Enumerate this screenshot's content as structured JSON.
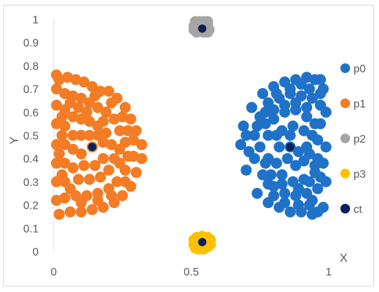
{
  "chart_data": {
    "type": "scatter",
    "title": "",
    "xlabel": "X",
    "ylabel": "Y",
    "xlim": [
      0,
      1
    ],
    "ylim": [
      0,
      1
    ],
    "x_ticks": [
      "0",
      "0.5",
      "1"
    ],
    "y_ticks": [
      "0",
      "0.1",
      "0.2",
      "0.3",
      "0.4",
      "0.5",
      "0.6",
      "0.7",
      "0.8",
      "0.9",
      "1"
    ],
    "grid": false,
    "legend_position": "right",
    "series": [
      {
        "name": "p0",
        "color": "#1f72c8",
        "points": [
          [
            0.86,
            0.45
          ],
          [
            0.9,
            0.72
          ],
          [
            0.95,
            0.74
          ],
          [
            0.93,
            0.2
          ],
          [
            0.96,
            0.17
          ],
          [
            0.78,
            0.29
          ],
          [
            0.7,
            0.35
          ],
          [
            0.68,
            0.46
          ],
          [
            0.69,
            0.54
          ],
          [
            0.72,
            0.62
          ],
          [
            0.76,
            0.68
          ],
          [
            0.8,
            0.71
          ],
          [
            0.84,
            0.73
          ],
          [
            0.88,
            0.74
          ],
          [
            0.92,
            0.75
          ],
          [
            0.97,
            0.74
          ],
          [
            0.74,
            0.25
          ],
          [
            0.78,
            0.21
          ],
          [
            0.82,
            0.19
          ],
          [
            0.86,
            0.17
          ],
          [
            0.9,
            0.17
          ],
          [
            0.94,
            0.16
          ],
          [
            0.98,
            0.19
          ],
          [
            0.99,
            0.3
          ],
          [
            0.99,
            0.45
          ],
          [
            0.99,
            0.6
          ],
          [
            0.98,
            0.7
          ],
          [
            0.73,
            0.4
          ],
          [
            0.73,
            0.5
          ],
          [
            0.75,
            0.58
          ],
          [
            0.78,
            0.64
          ],
          [
            0.82,
            0.66
          ],
          [
            0.86,
            0.68
          ],
          [
            0.9,
            0.67
          ],
          [
            0.94,
            0.66
          ],
          [
            0.97,
            0.63
          ],
          [
            0.76,
            0.33
          ],
          [
            0.8,
            0.28
          ],
          [
            0.84,
            0.25
          ],
          [
            0.88,
            0.24
          ],
          [
            0.92,
            0.25
          ],
          [
            0.96,
            0.27
          ],
          [
            0.78,
            0.4
          ],
          [
            0.78,
            0.5
          ],
          [
            0.8,
            0.57
          ],
          [
            0.84,
            0.6
          ],
          [
            0.88,
            0.61
          ],
          [
            0.92,
            0.58
          ],
          [
            0.95,
            0.55
          ],
          [
            0.96,
            0.48
          ],
          [
            0.96,
            0.4
          ],
          [
            0.95,
            0.34
          ],
          [
            0.91,
            0.31
          ],
          [
            0.87,
            0.3
          ],
          [
            0.83,
            0.33
          ],
          [
            0.81,
            0.38
          ],
          [
            0.82,
            0.45
          ],
          [
            0.83,
            0.52
          ],
          [
            0.87,
            0.54
          ],
          [
            0.91,
            0.52
          ],
          [
            0.92,
            0.45
          ],
          [
            0.91,
            0.39
          ],
          [
            0.88,
            0.37
          ],
          [
            0.85,
            0.4
          ],
          [
            0.71,
            0.43
          ],
          [
            0.7,
            0.5
          ],
          [
            0.75,
            0.45
          ],
          [
            0.77,
            0.55
          ],
          [
            0.81,
            0.5
          ],
          [
            0.86,
            0.5
          ],
          [
            0.89,
            0.43
          ],
          [
            0.93,
            0.42
          ],
          [
            0.94,
            0.5
          ],
          [
            0.97,
            0.55
          ],
          [
            0.98,
            0.38
          ],
          [
            0.97,
            0.32
          ],
          [
            0.94,
            0.22
          ],
          [
            0.89,
            0.2
          ],
          [
            0.84,
            0.21
          ],
          [
            0.8,
            0.24
          ],
          [
            0.77,
            0.38
          ],
          [
            0.79,
            0.33
          ],
          [
            0.83,
            0.29
          ],
          [
            0.89,
            0.27
          ],
          [
            0.93,
            0.3
          ],
          [
            0.95,
            0.37
          ],
          [
            0.92,
            0.62
          ],
          [
            0.88,
            0.64
          ],
          [
            0.84,
            0.63
          ],
          [
            0.8,
            0.61
          ],
          [
            0.77,
            0.6
          ],
          [
            0.74,
            0.54
          ],
          [
            0.97,
            0.68
          ],
          [
            0.93,
            0.7
          ],
          [
            0.86,
            0.7
          ],
          [
            0.81,
            0.68
          ]
        ]
      },
      {
        "name": "p1",
        "color": "#f47c24",
        "points": [
          [
            0.14,
            0.45
          ],
          [
            0.01,
            0.76
          ],
          [
            0.02,
            0.74
          ],
          [
            0.05,
            0.75
          ],
          [
            0.08,
            0.74
          ],
          [
            0.11,
            0.73
          ],
          [
            0.14,
            0.71
          ],
          [
            0.17,
            0.69
          ],
          [
            0.2,
            0.69
          ],
          [
            0.23,
            0.66
          ],
          [
            0.26,
            0.62
          ],
          [
            0.28,
            0.57
          ],
          [
            0.3,
            0.52
          ],
          [
            0.32,
            0.46
          ],
          [
            0.32,
            0.4
          ],
          [
            0.3,
            0.34
          ],
          [
            0.28,
            0.28
          ],
          [
            0.25,
            0.24
          ],
          [
            0.22,
            0.21
          ],
          [
            0.18,
            0.19
          ],
          [
            0.14,
            0.18
          ],
          [
            0.1,
            0.17
          ],
          [
            0.06,
            0.17
          ],
          [
            0.02,
            0.16
          ],
          [
            0.01,
            0.22
          ],
          [
            0.01,
            0.3
          ],
          [
            0.01,
            0.38
          ],
          [
            0.01,
            0.46
          ],
          [
            0.01,
            0.55
          ],
          [
            0.01,
            0.63
          ],
          [
            0.01,
            0.7
          ],
          [
            0.04,
            0.68
          ],
          [
            0.07,
            0.67
          ],
          [
            0.1,
            0.66
          ],
          [
            0.13,
            0.64
          ],
          [
            0.16,
            0.62
          ],
          [
            0.19,
            0.6
          ],
          [
            0.22,
            0.57
          ],
          [
            0.24,
            0.52
          ],
          [
            0.26,
            0.47
          ],
          [
            0.27,
            0.41
          ],
          [
            0.26,
            0.35
          ],
          [
            0.23,
            0.3
          ],
          [
            0.2,
            0.27
          ],
          [
            0.16,
            0.25
          ],
          [
            0.12,
            0.24
          ],
          [
            0.08,
            0.24
          ],
          [
            0.04,
            0.23
          ],
          [
            0.04,
            0.3
          ],
          [
            0.04,
            0.38
          ],
          [
            0.04,
            0.46
          ],
          [
            0.04,
            0.54
          ],
          [
            0.04,
            0.61
          ],
          [
            0.07,
            0.58
          ],
          [
            0.1,
            0.57
          ],
          [
            0.13,
            0.56
          ],
          [
            0.16,
            0.54
          ],
          [
            0.19,
            0.51
          ],
          [
            0.21,
            0.46
          ],
          [
            0.22,
            0.4
          ],
          [
            0.2,
            0.35
          ],
          [
            0.17,
            0.32
          ],
          [
            0.13,
            0.31
          ],
          [
            0.09,
            0.31
          ],
          [
            0.07,
            0.36
          ],
          [
            0.07,
            0.44
          ],
          [
            0.07,
            0.5
          ],
          [
            0.1,
            0.5
          ],
          [
            0.1,
            0.42
          ],
          [
            0.11,
            0.37
          ],
          [
            0.15,
            0.37
          ],
          [
            0.18,
            0.4
          ],
          [
            0.18,
            0.47
          ],
          [
            0.16,
            0.5
          ],
          [
            0.13,
            0.5
          ],
          [
            0.06,
            0.64
          ],
          [
            0.09,
            0.62
          ],
          [
            0.15,
            0.67
          ],
          [
            0.21,
            0.64
          ],
          [
            0.25,
            0.58
          ],
          [
            0.29,
            0.48
          ],
          [
            0.29,
            0.41
          ],
          [
            0.24,
            0.38
          ],
          [
            0.24,
            0.44
          ],
          [
            0.27,
            0.52
          ],
          [
            0.18,
            0.56
          ],
          [
            0.12,
            0.6
          ],
          [
            0.06,
            0.27
          ],
          [
            0.1,
            0.21
          ],
          [
            0.16,
            0.22
          ],
          [
            0.21,
            0.24
          ],
          [
            0.26,
            0.3
          ],
          [
            0.03,
            0.33
          ],
          [
            0.03,
            0.5
          ],
          [
            0.03,
            0.58
          ],
          [
            0.02,
            0.42
          ]
        ]
      },
      {
        "name": "p2",
        "color": "#a5a5a5",
        "points": [
          [
            0.515,
            0.99
          ],
          [
            0.53,
            0.99
          ],
          [
            0.545,
            0.99
          ],
          [
            0.56,
            0.99
          ],
          [
            0.52,
            0.98
          ],
          [
            0.55,
            0.98
          ],
          [
            0.51,
            0.97
          ],
          [
            0.53,
            0.97
          ],
          [
            0.545,
            0.975
          ],
          [
            0.56,
            0.97
          ],
          [
            0.52,
            0.96
          ],
          [
            0.54,
            0.96
          ],
          [
            0.56,
            0.96
          ],
          [
            0.51,
            0.955
          ],
          [
            0.53,
            0.95
          ],
          [
            0.55,
            0.95
          ],
          [
            0.52,
            0.945
          ],
          [
            0.545,
            0.945
          ],
          [
            0.56,
            0.945
          ],
          [
            0.535,
            0.985
          ],
          [
            0.515,
            0.965
          ],
          [
            0.565,
            0.955
          ]
        ]
      },
      {
        "name": "p3",
        "color": "#ffc000",
        "points": [
          [
            0.52,
            0.06
          ],
          [
            0.54,
            0.065
          ],
          [
            0.56,
            0.06
          ],
          [
            0.51,
            0.05
          ],
          [
            0.53,
            0.05
          ],
          [
            0.55,
            0.05
          ],
          [
            0.57,
            0.05
          ],
          [
            0.52,
            0.04
          ],
          [
            0.545,
            0.04
          ],
          [
            0.565,
            0.04
          ],
          [
            0.51,
            0.03
          ],
          [
            0.53,
            0.03
          ],
          [
            0.55,
            0.03
          ],
          [
            0.57,
            0.03
          ],
          [
            0.52,
            0.02
          ],
          [
            0.54,
            0.015
          ],
          [
            0.56,
            0.02
          ],
          [
            0.535,
            0.055
          ],
          [
            0.555,
            0.025
          ],
          [
            0.525,
            0.01
          ],
          [
            0.545,
            0.01
          ],
          [
            0.515,
            0.015
          ]
        ]
      },
      {
        "name": "ct",
        "color": "#0d1f5c",
        "points": [
          [
            0.86,
            0.45
          ],
          [
            0.14,
            0.45
          ],
          [
            0.54,
            0.96
          ],
          [
            0.54,
            0.04
          ]
        ]
      }
    ]
  }
}
